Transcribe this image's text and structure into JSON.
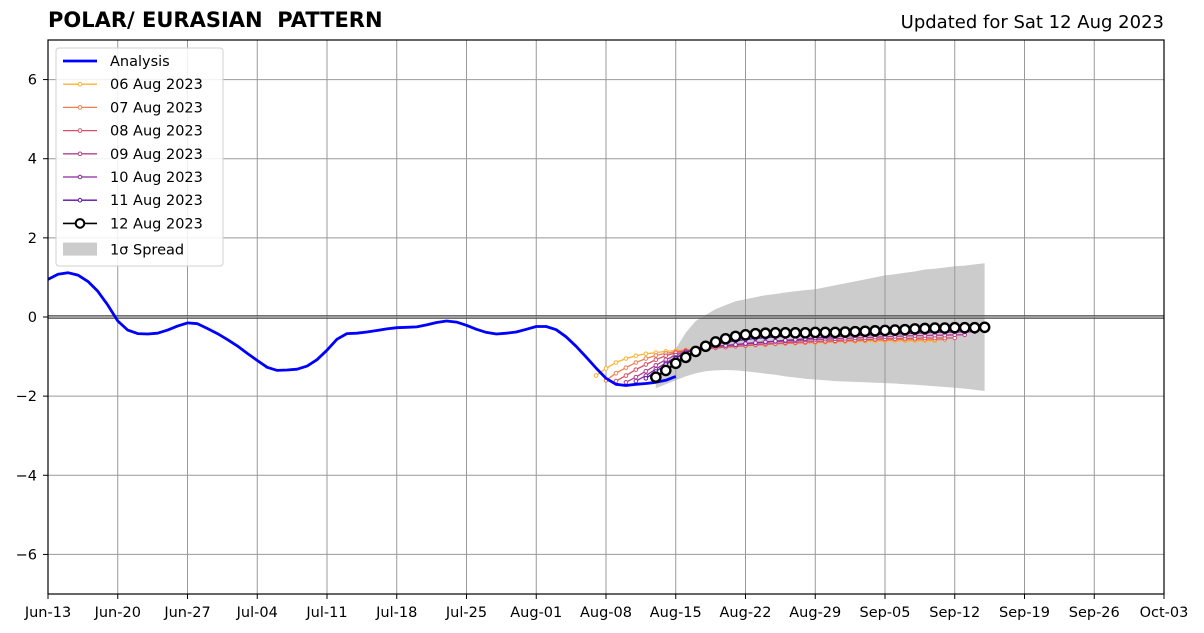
{
  "chart_data": {
    "type": "line",
    "title": "POLAR/ EURASIAN  PATTERN",
    "subtitle": "Updated for Sat 12 Aug 2023",
    "xlabel": "",
    "ylabel": "",
    "x_range": [
      "2023-06-13",
      "2023-10-03"
    ],
    "ylim": [
      -7,
      7
    ],
    "y_ticks": [
      -6,
      -4,
      -2,
      0,
      2,
      4,
      6
    ],
    "y_tick_labels": [
      "−6",
      "−4",
      "−2",
      "0",
      "2",
      "4",
      "6"
    ],
    "x_ticks": [
      "2023-06-13",
      "2023-06-20",
      "2023-06-27",
      "2023-07-04",
      "2023-07-11",
      "2023-07-18",
      "2023-07-25",
      "2023-08-01",
      "2023-08-08",
      "2023-08-15",
      "2023-08-22",
      "2023-08-29",
      "2023-09-05",
      "2023-09-12",
      "2023-09-19",
      "2023-09-26",
      "2023-10-03"
    ],
    "x_tick_labels": [
      "Jun-13",
      "Jun-20",
      "Jun-27",
      "Jul-04",
      "Jul-11",
      "Jul-18",
      "Jul-25",
      "Aug-01",
      "Aug-08",
      "Aug-15",
      "Aug-22",
      "Aug-29",
      "Sep-05",
      "Sep-12",
      "Sep-19",
      "Sep-26",
      "Oct-03"
    ],
    "grid": true,
    "legend_position": "top-left",
    "analysis": {
      "name": "Analysis",
      "color": "#0000ff",
      "start_date": "2023-06-13",
      "values": [
        0.95,
        1.08,
        1.12,
        1.06,
        0.9,
        0.65,
        0.3,
        -0.1,
        -0.33,
        -0.42,
        -0.43,
        -0.41,
        -0.33,
        -0.23,
        -0.15,
        -0.17,
        -0.29,
        -0.42,
        -0.57,
        -0.73,
        -0.92,
        -1.1,
        -1.27,
        -1.35,
        -1.34,
        -1.32,
        -1.24,
        -1.08,
        -0.84,
        -0.56,
        -0.42,
        -0.41,
        -0.38,
        -0.34,
        -0.3,
        -0.27,
        -0.26,
        -0.25,
        -0.2,
        -0.14,
        -0.1,
        -0.13,
        -0.21,
        -0.31,
        -0.39,
        -0.43,
        -0.41,
        -0.38,
        -0.31,
        -0.24,
        -0.24,
        -0.32,
        -0.5,
        -0.74,
        -1.01,
        -1.29,
        -1.55,
        -1.7,
        -1.73,
        -1.7,
        -1.68,
        -1.65,
        -1.6,
        -1.5
      ]
    },
    "forecasts": [
      {
        "name": "06 Aug 2023",
        "color": "#fbb32f",
        "start_date": "2023-08-07",
        "values": [
          -1.48,
          -1.3,
          -1.15,
          -1.05,
          -0.98,
          -0.93,
          -0.9,
          -0.87,
          -0.85,
          -0.83,
          -0.8,
          -0.78,
          -0.76,
          -0.75,
          -0.73,
          -0.72,
          -0.7,
          -0.69,
          -0.68,
          -0.67,
          -0.66,
          -0.65,
          -0.65,
          -0.64,
          -0.63,
          -0.62,
          -0.62,
          -0.61,
          -0.61,
          -0.6,
          -0.6,
          -0.6,
          -0.6,
          -0.6,
          -0.6
        ]
      },
      {
        "name": "07 Aug 2023",
        "color": "#f07f4e",
        "start_date": "2023-08-08",
        "values": [
          -1.6,
          -1.42,
          -1.28,
          -1.15,
          -1.05,
          -0.97,
          -0.92,
          -0.88,
          -0.85,
          -0.82,
          -0.8,
          -0.78,
          -0.76,
          -0.74,
          -0.73,
          -0.71,
          -0.7,
          -0.68,
          -0.67,
          -0.66,
          -0.65,
          -0.64,
          -0.63,
          -0.62,
          -0.61,
          -0.6,
          -0.59,
          -0.58,
          -0.58,
          -0.57,
          -0.57,
          -0.57,
          -0.57,
          -0.57,
          -0.57
        ]
      },
      {
        "name": "08 Aug 2023",
        "color": "#d9506a",
        "start_date": "2023-08-09",
        "values": [
          -1.62,
          -1.48,
          -1.33,
          -1.2,
          -1.08,
          -0.98,
          -0.9,
          -0.85,
          -0.82,
          -0.8,
          -0.78,
          -0.76,
          -0.74,
          -0.72,
          -0.7,
          -0.68,
          -0.67,
          -0.65,
          -0.64,
          -0.63,
          -0.62,
          -0.61,
          -0.6,
          -0.59,
          -0.58,
          -0.57,
          -0.56,
          -0.55,
          -0.55,
          -0.54,
          -0.54,
          -0.53,
          -0.53,
          -0.53,
          -0.53
        ]
      },
      {
        "name": "09 Aug 2023",
        "color": "#b33f8e",
        "start_date": "2023-08-10",
        "values": [
          -1.65,
          -1.52,
          -1.37,
          -1.22,
          -1.08,
          -0.96,
          -0.87,
          -0.8,
          -0.76,
          -0.74,
          -0.72,
          -0.7,
          -0.68,
          -0.66,
          -0.64,
          -0.62,
          -0.61,
          -0.6,
          -0.58,
          -0.57,
          -0.56,
          -0.55,
          -0.54,
          -0.53,
          -0.52,
          -0.51,
          -0.5,
          -0.49,
          -0.48,
          -0.47,
          -0.47,
          -0.46,
          -0.46,
          -0.45,
          -0.45
        ]
      },
      {
        "name": "10 Aug 2023",
        "color": "#8c26a0",
        "start_date": "2023-08-11",
        "values": [
          -1.62,
          -1.48,
          -1.32,
          -1.16,
          -1.02,
          -0.9,
          -0.82,
          -0.77,
          -0.74,
          -0.72,
          -0.7,
          -0.67,
          -0.65,
          -0.63,
          -0.61,
          -0.59,
          -0.57,
          -0.55,
          -0.53,
          -0.51,
          -0.5,
          -0.48,
          -0.47,
          -0.46,
          -0.45,
          -0.44,
          -0.43,
          -0.42,
          -0.41,
          -0.4,
          -0.39,
          -0.39,
          -0.38,
          -0.38,
          -0.37
        ]
      },
      {
        "name": "11 Aug 2023",
        "color": "#5a0ea8",
        "start_date": "2023-08-12",
        "values": [
          -1.55,
          -1.38,
          -1.2,
          -1.04,
          -0.9,
          -0.8,
          -0.73,
          -0.68,
          -0.64,
          -0.6,
          -0.57,
          -0.54,
          -0.52,
          -0.5,
          -0.48,
          -0.46,
          -0.44,
          -0.43,
          -0.42,
          -0.41,
          -0.4,
          -0.39,
          -0.38,
          -0.37,
          -0.36,
          -0.35,
          -0.34,
          -0.33,
          -0.32,
          -0.31,
          -0.3,
          -0.3,
          -0.29,
          -0.29,
          -0.28
        ]
      },
      {
        "name": "12 Aug 2023",
        "color": "#000000",
        "start_date": "2023-08-13",
        "values": [
          -1.52,
          -1.35,
          -1.17,
          -1.02,
          -0.87,
          -0.74,
          -0.63,
          -0.55,
          -0.49,
          -0.45,
          -0.42,
          -0.41,
          -0.4,
          -0.4,
          -0.4,
          -0.4,
          -0.39,
          -0.39,
          -0.39,
          -0.38,
          -0.37,
          -0.36,
          -0.35,
          -0.34,
          -0.33,
          -0.32,
          -0.3,
          -0.29,
          -0.28,
          -0.28,
          -0.27,
          -0.27,
          -0.27,
          -0.26
        ]
      }
    ],
    "spread": {
      "name": "1σ Spread",
      "color": "#cccccc",
      "start_date": "2023-08-13",
      "upper": [
        -1.5,
        -1.2,
        -0.8,
        -0.4,
        -0.1,
        0.05,
        0.2,
        0.3,
        0.4,
        0.45,
        0.5,
        0.55,
        0.58,
        0.62,
        0.65,
        0.68,
        0.7,
        0.75,
        0.8,
        0.85,
        0.9,
        0.95,
        1.0,
        1.05,
        1.08,
        1.12,
        1.15,
        1.2,
        1.22,
        1.25,
        1.28,
        1.3,
        1.33,
        1.36
      ],
      "lower": [
        -1.8,
        -1.7,
        -1.6,
        -1.5,
        -1.42,
        -1.37,
        -1.35,
        -1.34,
        -1.35,
        -1.37,
        -1.4,
        -1.43,
        -1.46,
        -1.5,
        -1.53,
        -1.56,
        -1.58,
        -1.6,
        -1.62,
        -1.63,
        -1.64,
        -1.65,
        -1.66,
        -1.67,
        -1.68,
        -1.7,
        -1.71,
        -1.73,
        -1.75,
        -1.77,
        -1.79,
        -1.81,
        -1.84,
        -1.87
      ]
    }
  }
}
